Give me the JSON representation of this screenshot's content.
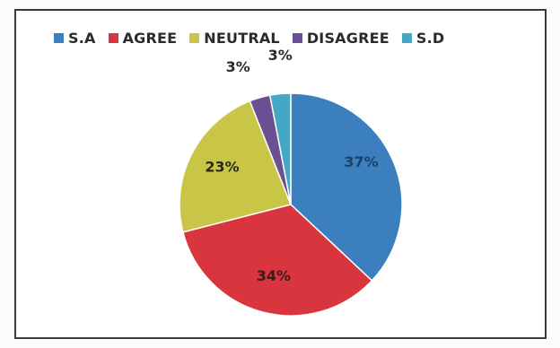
{
  "chart_data": {
    "type": "pie",
    "categories": [
      "S.A",
      "AGREE",
      "NEUTRAL",
      "DISAGREE",
      "S.D"
    ],
    "values": [
      37,
      34,
      23,
      3,
      3
    ],
    "labels": [
      "37%",
      "34%",
      "23%",
      "3%",
      "3%"
    ],
    "colors": [
      "#3c7fbf",
      "#d8353f",
      "#c9c546",
      "#6b4f93",
      "#45a7c6"
    ],
    "legend_position": "top"
  }
}
